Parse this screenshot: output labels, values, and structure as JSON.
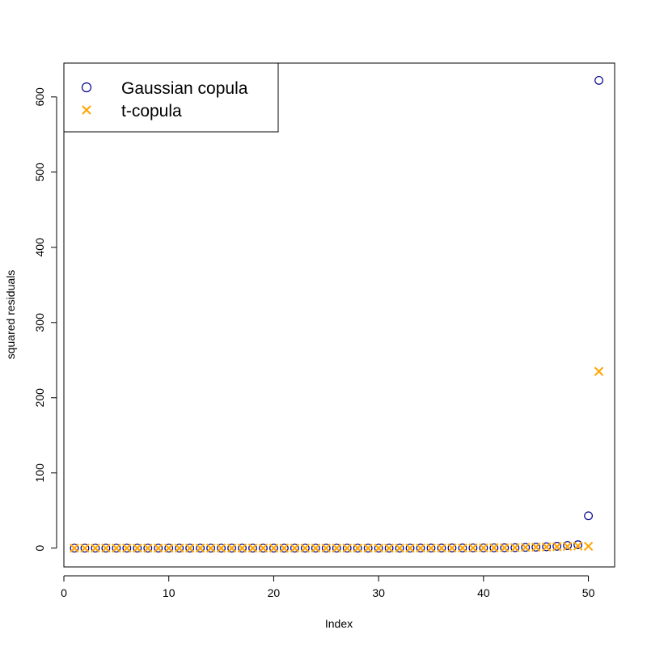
{
  "chart_data": {
    "type": "scatter",
    "xlabel": "Index",
    "ylabel": "squared residuals",
    "xlim": [
      0,
      52.5
    ],
    "ylim": [
      -25,
      645
    ],
    "x_ticks": [
      0,
      10,
      20,
      30,
      40,
      50
    ],
    "y_ticks": [
      0,
      100,
      200,
      300,
      400,
      500,
      600
    ],
    "legend": {
      "position": "top-left"
    },
    "series": [
      {
        "name": "Gaussian copula",
        "marker": "circle",
        "color": "#00008B",
        "x": [
          1,
          2,
          3,
          4,
          5,
          6,
          7,
          8,
          9,
          10,
          11,
          12,
          13,
          14,
          15,
          16,
          17,
          18,
          19,
          20,
          21,
          22,
          23,
          24,
          25,
          26,
          27,
          28,
          29,
          30,
          31,
          32,
          33,
          34,
          35,
          36,
          37,
          38,
          39,
          40,
          41,
          42,
          43,
          44,
          45,
          46,
          47,
          48,
          49,
          50,
          51
        ],
        "y": [
          0,
          0,
          0,
          0,
          0,
          0,
          0,
          0,
          0,
          0,
          0,
          0,
          0,
          0,
          0,
          0,
          0,
          0,
          0,
          0,
          0,
          0,
          0,
          0,
          0,
          0,
          0,
          0,
          0,
          0,
          0,
          0,
          0,
          0.1,
          0.1,
          0.1,
          0.2,
          0.2,
          0.3,
          0.3,
          0.4,
          0.5,
          0.6,
          1,
          1.3,
          1.8,
          2.5,
          3.5,
          4.5,
          43,
          622
        ]
      },
      {
        "name": "t-copula",
        "marker": "x",
        "color": "#FFA500",
        "x": [
          1,
          2,
          3,
          4,
          5,
          6,
          7,
          8,
          9,
          10,
          11,
          12,
          13,
          14,
          15,
          16,
          17,
          18,
          19,
          20,
          21,
          22,
          23,
          24,
          25,
          26,
          27,
          28,
          29,
          30,
          31,
          32,
          33,
          34,
          35,
          36,
          37,
          38,
          39,
          40,
          41,
          42,
          43,
          44,
          45,
          46,
          47,
          48,
          49,
          50,
          51
        ],
        "y": [
          0,
          0,
          0,
          0,
          0,
          0,
          0,
          0,
          0,
          0,
          0,
          0,
          0,
          0,
          0,
          0,
          0,
          0,
          0,
          0,
          0,
          0,
          0,
          0,
          0,
          0,
          0,
          0,
          0,
          0,
          0,
          0,
          0,
          0.1,
          0.1,
          0.1,
          0.2,
          0.2,
          0.3,
          0.3,
          0.4,
          0.5,
          0.6,
          1,
          1.2,
          1.5,
          1.9,
          2.4,
          2.9,
          2.5,
          235
        ]
      }
    ]
  }
}
